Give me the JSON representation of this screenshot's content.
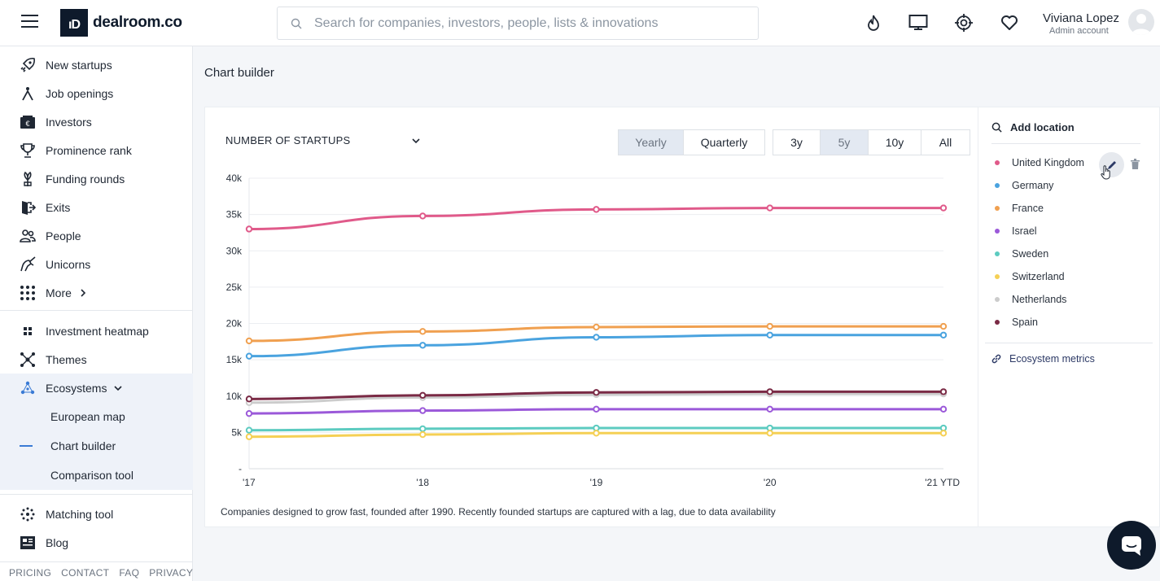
{
  "header": {
    "logo_mark": "ıD",
    "logo_text": "dealroom.co",
    "search_placeholder": "Search for companies, investors, people, lists & innovations",
    "user_name": "Viviana Lopez",
    "user_role": "Admin account",
    "icons": [
      "menu-icon",
      "flame-icon",
      "monitor-icon",
      "target-icon",
      "heart-icon"
    ]
  },
  "sidebar": {
    "items": [
      {
        "label": "New startups",
        "icon": "rocket-icon"
      },
      {
        "label": "Job openings",
        "icon": "job-icon"
      },
      {
        "label": "Investors",
        "icon": "wallet-icon"
      },
      {
        "label": "Prominence rank",
        "icon": "trophy-icon"
      },
      {
        "label": "Funding rounds",
        "icon": "seedling-icon"
      },
      {
        "label": "Exits",
        "icon": "exit-icon"
      },
      {
        "label": "People",
        "icon": "people-icon"
      },
      {
        "label": "Unicorns",
        "icon": "unicorn-icon"
      },
      {
        "label": "More",
        "icon": "grid-icon"
      }
    ],
    "tools": [
      {
        "label": "Investment heatmap",
        "icon": "heatmap-icon"
      },
      {
        "label": "Themes",
        "icon": "themes-icon"
      },
      {
        "label": "Ecosystems",
        "icon": "ecosystems-icon"
      }
    ],
    "sub_items": [
      "European map",
      "Chart builder",
      "Comparison tool"
    ],
    "bottom": [
      {
        "label": "Matching tool",
        "icon": "matching-icon"
      },
      {
        "label": "Blog",
        "icon": "blog-icon"
      }
    ],
    "footer": [
      "PRICING",
      "CONTACT",
      "FAQ",
      "PRIVACY"
    ]
  },
  "page": {
    "title": "Chart builder",
    "metric": "NUMBER OF STARTUPS",
    "period_tabs": [
      {
        "label": "Yearly",
        "active": true
      },
      {
        "label": "Quarterly",
        "active": false
      }
    ],
    "range_tabs": [
      {
        "label": "3y",
        "active": false
      },
      {
        "label": "5y",
        "active": true
      },
      {
        "label": "10y",
        "active": false
      },
      {
        "label": "All",
        "active": false
      }
    ],
    "caption": "Companies designed to grow fast, founded after 1990. Recently founded startups are captured with a lag, due to data availability"
  },
  "locations": {
    "add_label": "Add location",
    "items": [
      {
        "name": "United Kingdom",
        "color": "#e05a8a"
      },
      {
        "name": "Germany",
        "color": "#4aa3df"
      },
      {
        "name": "France",
        "color": "#f0a050"
      },
      {
        "name": "Israel",
        "color": "#9b59d9"
      },
      {
        "name": "Sweden",
        "color": "#5ccbc0"
      },
      {
        "name": "Switzerland",
        "color": "#f5d055"
      },
      {
        "name": "Netherlands",
        "color": "#cccccc"
      },
      {
        "name": "Spain",
        "color": "#7a2a45"
      }
    ],
    "ecosystem_link": "Ecosystem metrics"
  },
  "chart_data": {
    "type": "line",
    "x": [
      "'17",
      "'18",
      "'19",
      "'20",
      "'21 YTD"
    ],
    "ylim": [
      0,
      40000
    ],
    "y_ticks": [
      "-",
      "5k",
      "10k",
      "15k",
      "20k",
      "25k",
      "30k",
      "35k",
      "40k"
    ],
    "grid": true,
    "series": [
      {
        "name": "United Kingdom",
        "color": "#e05a8a",
        "values": [
          33000,
          34800,
          35700,
          35900,
          35900
        ]
      },
      {
        "name": "Germany",
        "color": "#4aa3df",
        "values": [
          15500,
          17000,
          18100,
          18400,
          18400
        ]
      },
      {
        "name": "France",
        "color": "#f0a050",
        "values": [
          17600,
          18900,
          19500,
          19600,
          19600
        ]
      },
      {
        "name": "Israel",
        "color": "#9b59d9",
        "values": [
          7600,
          8000,
          8200,
          8200,
          8200
        ]
      },
      {
        "name": "Sweden",
        "color": "#5ccbc0",
        "values": [
          5300,
          5500,
          5600,
          5600,
          5600
        ]
      },
      {
        "name": "Switzerland",
        "color": "#f5d055",
        "values": [
          4400,
          4700,
          4900,
          4900,
          4900
        ]
      },
      {
        "name": "Netherlands",
        "color": "#cccccc",
        "values": [
          9100,
          9800,
          10200,
          10300,
          10300
        ]
      },
      {
        "name": "Spain",
        "color": "#7a2a45",
        "values": [
          9600,
          10100,
          10500,
          10600,
          10600
        ]
      }
    ]
  }
}
